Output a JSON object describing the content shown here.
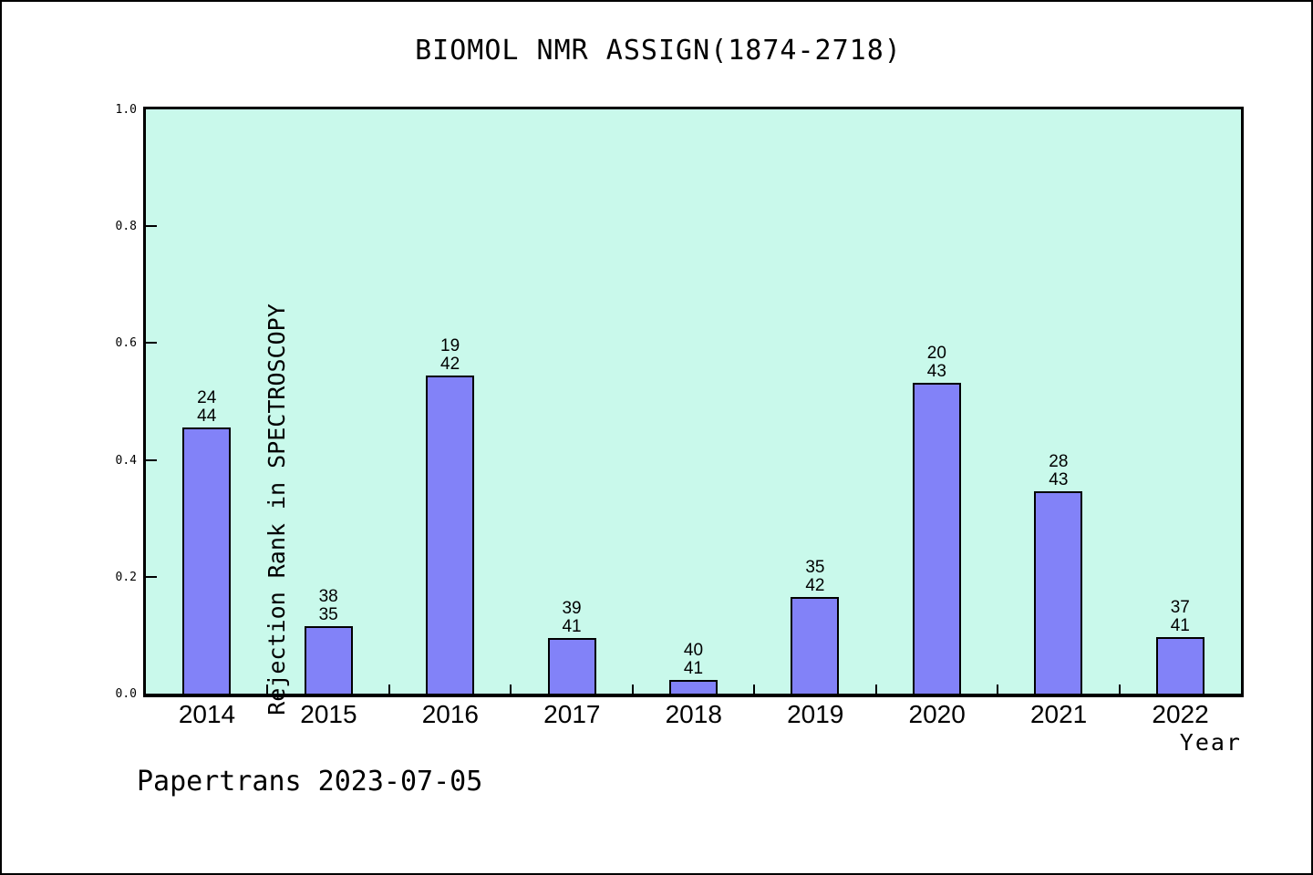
{
  "title": "BIOMOL NMR ASSIGN(1874-2718)",
  "footer": "Papertrans 2023-07-05",
  "colors": {
    "figure_bg": "#ffffff",
    "plot_bg": "#c9f9eb",
    "bar_fill": "#8282f8",
    "bar_edge": "#000000",
    "frame": "#000000"
  },
  "chart_data": {
    "type": "bar",
    "title": "BIOMOL NMR ASSIGN(1874-2718)",
    "xlabel": "Year",
    "ylabel": "Rejection Rank in SPECTROSCOPY",
    "categories": [
      "2014",
      "2015",
      "2016",
      "2017",
      "2018",
      "2019",
      "2020",
      "2021",
      "2022"
    ],
    "values": [
      0.455,
      0.115,
      0.545,
      0.095,
      0.023,
      0.166,
      0.532,
      0.347,
      0.096
    ],
    "bar_labels": [
      [
        "24",
        "44"
      ],
      [
        "38",
        "35"
      ],
      [
        "19",
        "42"
      ],
      [
        "39",
        "41"
      ],
      [
        "40",
        "41"
      ],
      [
        "35",
        "42"
      ],
      [
        "20",
        "43"
      ],
      [
        "28",
        "43"
      ],
      [
        "37",
        "41"
      ]
    ],
    "ylim": [
      0,
      1
    ],
    "yticks": [
      "0.0",
      "0.2",
      "0.4",
      "0.6",
      "0.8",
      "1.0"
    ],
    "grid": false,
    "legend": null,
    "annotation": "each bar is annotated with two stacked numbers (top, bottom)"
  }
}
